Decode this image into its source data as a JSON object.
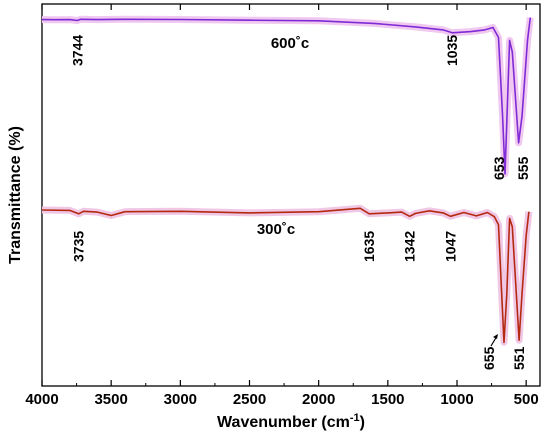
{
  "chart_data": {
    "type": "line",
    "xlabel": "Wavenumber (cm",
    "xlabel_sup": "-1",
    "xlabel_end": ")",
    "ylabel": "Transmittance (%)",
    "xlim": [
      4000,
      400
    ],
    "x_ticks": [
      4000,
      3500,
      3000,
      2500,
      2000,
      1500,
      1000,
      500
    ],
    "grid": false,
    "series": [
      {
        "name": "600˚c",
        "color": "#7f2bd6",
        "highlight": "#f0c8f0",
        "points": [
          [
            4000,
            0.44
          ],
          [
            3900,
            0.47
          ],
          [
            3800,
            0.45
          ],
          [
            3744,
            0.6
          ],
          [
            3720,
            0.4
          ],
          [
            3600,
            0.44
          ],
          [
            3400,
            0.4
          ],
          [
            3000,
            0.43
          ],
          [
            2500,
            0.55
          ],
          [
            2000,
            0.65
          ],
          [
            1600,
            1.1
          ],
          [
            1300,
            1.7
          ],
          [
            1100,
            2.2
          ],
          [
            1035,
            2.7
          ],
          [
            900,
            2.5
          ],
          [
            800,
            2.2
          ],
          [
            740,
            1.8
          ],
          [
            700,
            3.5
          ],
          [
            670,
            17.0
          ],
          [
            653,
            26.8
          ],
          [
            640,
            18.0
          ],
          [
            620,
            4.0
          ],
          [
            600,
            6.0
          ],
          [
            555,
            21.5
          ],
          [
            530,
            17.0
          ],
          [
            490,
            4.0
          ],
          [
            470,
            0.1
          ]
        ],
        "peaks": [
          {
            "label": "3744",
            "x": 3744
          },
          {
            "label": "1035",
            "x": 1035
          },
          {
            "label": "653",
            "x": 653
          },
          {
            "label": "555",
            "x": 555
          }
        ]
      },
      {
        "name": "300˚c",
        "color": "#b42a10",
        "highlight": "#f0c8e6",
        "points": [
          [
            4000,
            0.0
          ],
          [
            3800,
            0.1
          ],
          [
            3735,
            0.9
          ],
          [
            3700,
            0.3
          ],
          [
            3600,
            0.5
          ],
          [
            3500,
            1.3
          ],
          [
            3400,
            0.4
          ],
          [
            3000,
            0.3
          ],
          [
            2500,
            0.7
          ],
          [
            2000,
            0.4
          ],
          [
            1700,
            -0.4
          ],
          [
            1635,
            0.9
          ],
          [
            1500,
            0.7
          ],
          [
            1400,
            0.5
          ],
          [
            1342,
            1.5
          ],
          [
            1300,
            0.8
          ],
          [
            1200,
            0.2
          ],
          [
            1100,
            0.7
          ],
          [
            1047,
            1.5
          ],
          [
            950,
            0.6
          ],
          [
            860,
            1.4
          ],
          [
            780,
            0.6
          ],
          [
            730,
            1.6
          ],
          [
            700,
            3.5
          ],
          [
            680,
            18.0
          ],
          [
            660,
            31.5
          ],
          [
            640,
            20.0
          ],
          [
            620,
            2.0
          ],
          [
            600,
            4.0
          ],
          [
            551,
            31.0
          ],
          [
            530,
            20.0
          ],
          [
            500,
            6.0
          ],
          [
            480,
            0.4
          ]
        ],
        "peaks": [
          {
            "label": "3735",
            "x": 3735
          },
          {
            "label": "1635",
            "x": 1635
          },
          {
            "label": "1342",
            "x": 1342
          },
          {
            "label": "1047",
            "x": 1047
          },
          {
            "label": "655",
            "x": 655
          },
          {
            "label": "551",
            "x": 551
          }
        ]
      }
    ]
  }
}
